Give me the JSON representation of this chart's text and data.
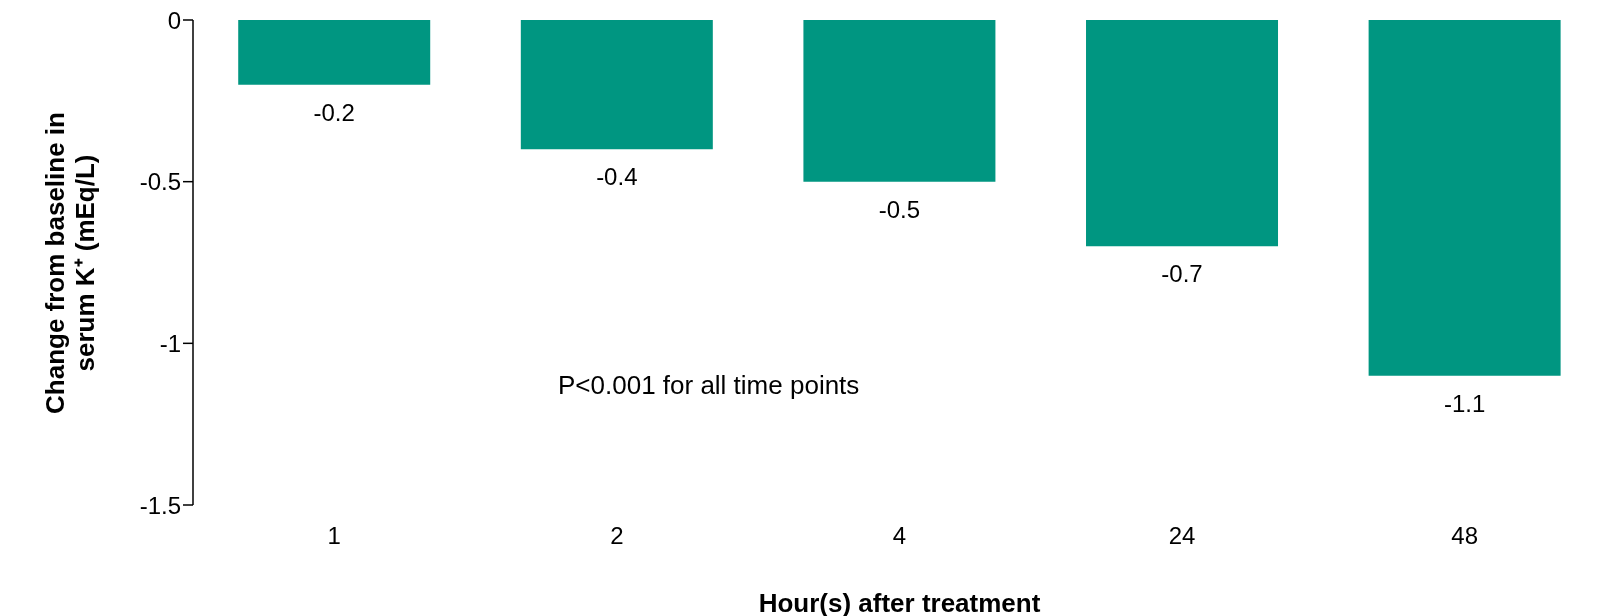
{
  "chart_data": {
    "type": "bar",
    "xlabel": "Hour(s) after treatment",
    "ylabel": "Change from baseline in serum K⁺ (mEq/L)",
    "categories": [
      "1",
      "2",
      "4",
      "24",
      "48"
    ],
    "values": [
      -0.2,
      -0.4,
      -0.5,
      -0.7,
      -1.1
    ],
    "color": "#009681",
    "ylim": [
      -1.5,
      0
    ],
    "yticks": [
      -1.5,
      -1,
      -0.5,
      0
    ],
    "data_labels": true,
    "annotations": [
      "P<0.001 for all time points"
    ]
  }
}
